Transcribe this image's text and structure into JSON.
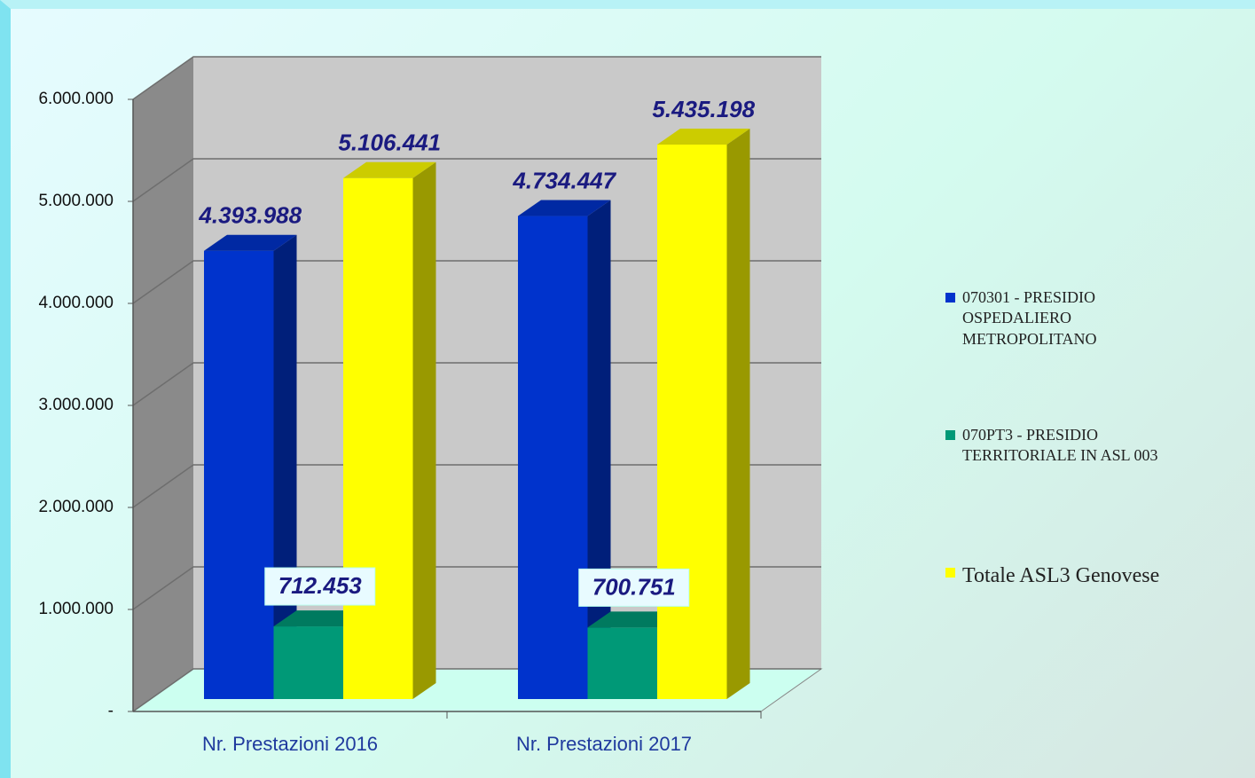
{
  "chart_data": {
    "type": "bar3d",
    "categories": [
      "Nr. Prestazioni 2016",
      "Nr. Prestazioni 2017"
    ],
    "series": [
      {
        "name": "070301 - PRESIDIO OSPEDALIERO METROPOLITANO",
        "color": "#0033cc",
        "values": [
          4393988,
          4734447
        ],
        "value_labels": [
          "4.393.988",
          "4.734.447"
        ]
      },
      {
        "name": "070PT3 - PRESIDIO TERRITORIALE IN ASL 003",
        "color": "#009977",
        "values": [
          712453,
          700751
        ],
        "value_labels": [
          "712.453",
          "700.751"
        ]
      },
      {
        "name": "Totale ASL3 Genovese",
        "color": "#ffff00",
        "values": [
          5106441,
          5435198
        ],
        "value_labels": [
          "5.106.441",
          "5.435.198"
        ]
      }
    ],
    "ylim": [
      0,
      6000000
    ],
    "yticks": [
      {
        "value": 0,
        "label": "-"
      },
      {
        "value": 1000000,
        "label": "1.000.000"
      },
      {
        "value": 2000000,
        "label": "2.000.000"
      },
      {
        "value": 3000000,
        "label": "3.000.000"
      },
      {
        "value": 4000000,
        "label": "4.000.000"
      },
      {
        "value": 5000000,
        "label": "5.000.000"
      },
      {
        "value": 6000000,
        "label": "6.000.000"
      }
    ],
    "grid": true
  }
}
